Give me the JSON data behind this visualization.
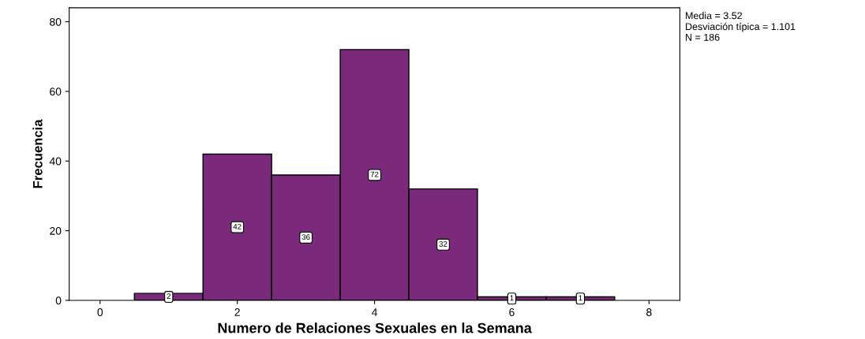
{
  "chart_data": {
    "type": "histogram",
    "xlabel": "Numero de Relaciones Sexuales en la Semana",
    "ylabel": "Frecuencia",
    "bins": [
      0.5,
      1.5,
      2.5,
      3.5,
      4.5,
      5.5,
      6.5,
      7.5
    ],
    "values": [
      2,
      42,
      36,
      72,
      32,
      1,
      1
    ],
    "color": "#7b2a7b",
    "xlim": [
      -0.45,
      8.45
    ],
    "xticks": [
      0,
      2,
      4,
      6,
      8
    ],
    "ylim": [
      0,
      84
    ],
    "yticks": [
      0,
      20,
      40,
      60,
      80
    ],
    "data_labels": true,
    "grid": false,
    "legend": false,
    "annotations": [
      "Media = 3.52",
      "Desviación típica = 1.101",
      "N = 186"
    ]
  }
}
